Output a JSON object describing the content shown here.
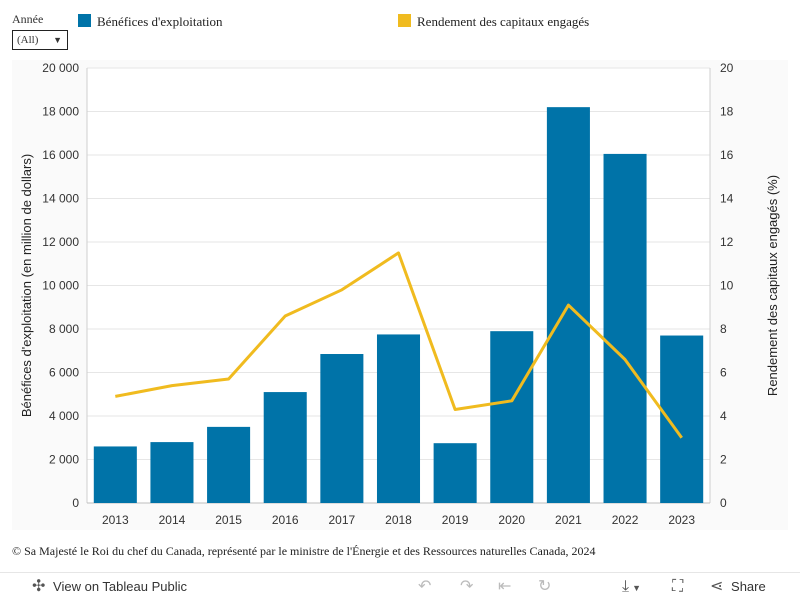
{
  "filter": {
    "label": "Année",
    "value": "(All)"
  },
  "legend": [
    {
      "label": "Bénéfices d'exploitation",
      "color": "#0073a8"
    },
    {
      "label": "Rendement des capitaux engagés",
      "color": "#f0bb1f"
    }
  ],
  "chart_data": {
    "type": "bar",
    "categories": [
      "2013",
      "2014",
      "2015",
      "2016",
      "2017",
      "2018",
      "2019",
      "2020",
      "2021",
      "2022",
      "2023"
    ],
    "series": [
      {
        "name": "Bénéfices d'exploitation",
        "type": "bar",
        "axis": "left",
        "color": "#0073a8",
        "values": [
          2600,
          2800,
          3500,
          5100,
          6850,
          7750,
          2750,
          7900,
          18200,
          16050,
          7700
        ]
      },
      {
        "name": "Rendement des capitaux engagés",
        "type": "line",
        "axis": "right",
        "color": "#f0bb1f",
        "values": [
          4.9,
          5.4,
          5.7,
          8.6,
          9.8,
          11.5,
          4.3,
          4.7,
          9.1,
          6.6,
          3.0
        ]
      }
    ],
    "ylabel": "Bénéfices d'exploitation (en million de dollars)",
    "ylabel_right": "Rendement des capitaux engagés (%)",
    "ylim": [
      0,
      20000
    ],
    "ylim_right": [
      0,
      20
    ],
    "yticks": [
      0,
      2000,
      4000,
      6000,
      8000,
      10000,
      12000,
      14000,
      16000,
      18000,
      20000
    ],
    "yticklabels": [
      "0",
      "2 000",
      "4 000",
      "6 000",
      "8 000",
      "10 000",
      "12 000",
      "14 000",
      "16 000",
      "18 000",
      "20 000"
    ],
    "yticks_right": [
      "0",
      "2",
      "4",
      "6",
      "8",
      "10",
      "12",
      "14",
      "16",
      "18",
      "20"
    ],
    "grid": true
  },
  "copyright": "© Sa Majesté le Roi du chef du Canada, représenté par le ministre de l'Énergie et des Ressources naturelles Canada, 2024",
  "toolbar": {
    "view_label": "View on Tableau Public",
    "share_label": "Share",
    "icons": [
      "tableau-icon",
      "undo-icon",
      "redo-icon",
      "revert-icon",
      "refresh-icon",
      "download-icon",
      "fullscreen-icon",
      "share-icon"
    ]
  }
}
